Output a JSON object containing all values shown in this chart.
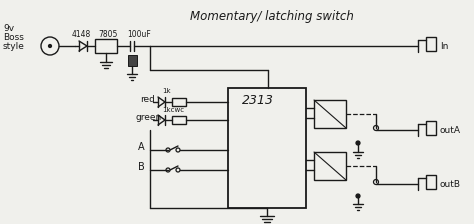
{
  "title": "Momentary/ latching switch",
  "bg_color": "#f0f0ec",
  "line_color": "#1a1a1a",
  "text_color": "#1a1a1a",
  "labels": {
    "top_left": [
      "9v",
      "Boss",
      "style"
    ],
    "components_top": [
      "4148",
      "7805",
      "100uF"
    ],
    "ic_label": "2313",
    "left_labels": [
      "red",
      "green",
      "A",
      "B"
    ],
    "right_labels": [
      "In",
      "outA",
      "outB"
    ],
    "resistor_label": "1k",
    "resistor_label2": "1kcwc"
  }
}
